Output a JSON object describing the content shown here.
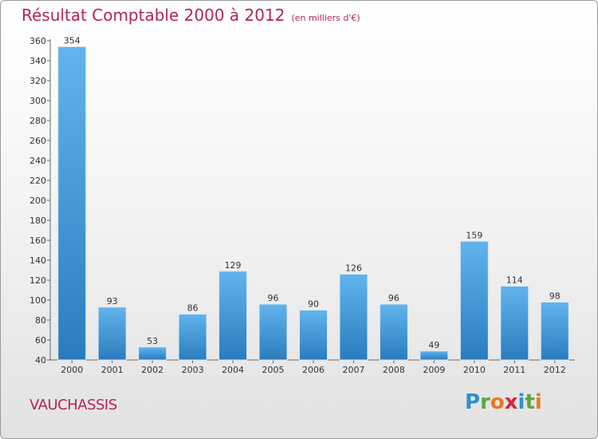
{
  "title": "Résultat Comptable 2000 à 2012",
  "subtitle": "(en milliers d'€)",
  "commune": "VAUCHASSIS",
  "logo": {
    "letters": [
      "P",
      "r",
      "o",
      "x",
      "i",
      "t",
      "i"
    ],
    "colors": [
      "#2f8fd0",
      "#5aa83c",
      "#e87a1d",
      "#d8243c",
      "#2f8fd0",
      "#5aa83c",
      "#e87a1d"
    ]
  },
  "colors": {
    "bar_top": "#62b4ee",
    "bar_bottom": "#2a7cbd",
    "title": "#b3245a"
  },
  "chart_data": {
    "type": "bar",
    "title": "Résultat Comptable 2000 à 2012",
    "subtitle": "(en milliers d'€)",
    "categories": [
      "2000",
      "2001",
      "2002",
      "2003",
      "2004",
      "2005",
      "2006",
      "2007",
      "2008",
      "2009",
      "2010",
      "2011",
      "2012"
    ],
    "values": [
      354,
      93,
      53,
      86,
      129,
      96,
      90,
      126,
      96,
      49,
      159,
      114,
      98
    ],
    "xlabel": "",
    "ylabel": "",
    "ylim": [
      40,
      360
    ],
    "yticks": [
      40,
      60,
      80,
      100,
      120,
      140,
      160,
      180,
      200,
      220,
      240,
      260,
      280,
      300,
      320,
      340,
      360
    ],
    "grid": false
  }
}
